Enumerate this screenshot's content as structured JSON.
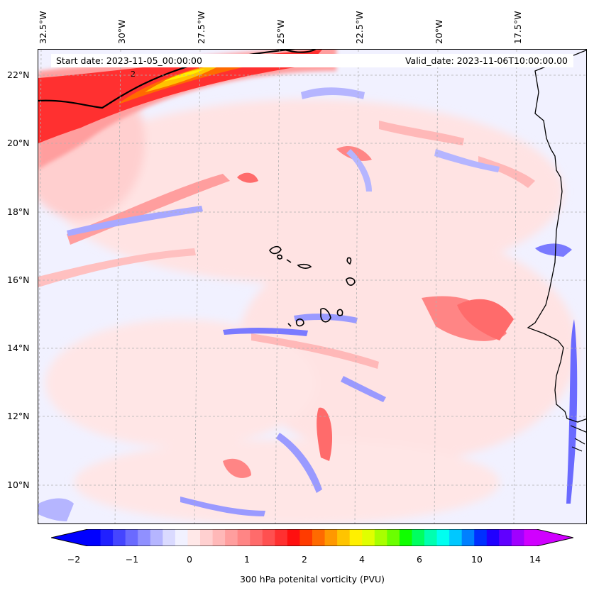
{
  "map": {
    "start_date": "Start date: 2023-11-05_00:00:00",
    "valid_date": "Valid_date: 2023-11-06T10:00:00.00",
    "contour_label": "2",
    "lon_labels": [
      "32.5°W",
      "30°W",
      "27.5°W",
      "25°W",
      "22.5°W",
      "20°W",
      "17.5°W"
    ],
    "lat_labels": [
      "22°N",
      "20°N",
      "18°N",
      "16°N",
      "14°N",
      "12°N",
      "10°N"
    ],
    "colorbar": {
      "ticks": [
        "−2",
        "−1",
        "0",
        "1",
        "2",
        "4",
        "6",
        "10",
        "14"
      ],
      "label": "300 hPa potenital vorticity (PVU)",
      "colors": [
        "#0000ff",
        "#2020ff",
        "#4545ff",
        "#6a6aff",
        "#9090ff",
        "#b5b5ff",
        "#dadaff",
        "#f1f1ff",
        "#ffe8e8",
        "#ffd0d0",
        "#ffb8b8",
        "#ff9e9e",
        "#ff8585",
        "#ff6b6b",
        "#ff5050",
        "#ff3030",
        "#ff0f0f",
        "#ff3b00",
        "#ff6a00",
        "#ff9800",
        "#ffc400",
        "#fff000",
        "#e0ff00",
        "#a8ff00",
        "#6bff00",
        "#10ff00",
        "#00ff60",
        "#00ffb0",
        "#00fff0",
        "#00c8ff",
        "#0080ff",
        "#0030ff",
        "#2000ff",
        "#6000ff",
        "#a000ff",
        "#d000ff"
      ]
    },
    "style": {
      "negative": "#8c8cff",
      "positive": "#ff7373",
      "high": "#ff1a1a",
      "coast": "#000000",
      "grid": "#b0b0b0"
    }
  }
}
